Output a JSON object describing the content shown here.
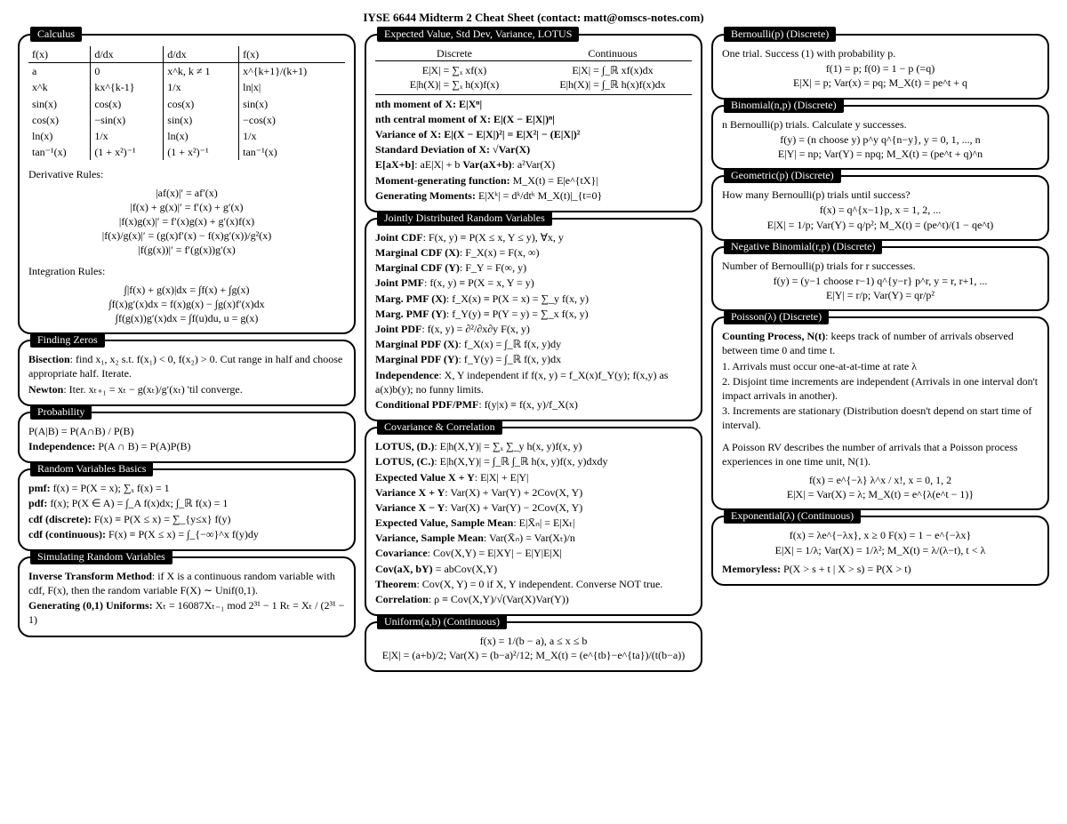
{
  "title": "IYSE 6644 Midterm 2 Cheat Sheet (contact: matt@omscs-notes.com)",
  "col1": {
    "calculus": {
      "title": "Calculus",
      "headers": [
        "f(x)",
        "d/dx",
        "d/dx",
        "f(x)"
      ],
      "rows": [
        [
          "a",
          "0",
          "x^k, k ≠ 1",
          "x^{k+1}/(k+1)"
        ],
        [
          "x^k",
          "kx^{k-1}",
          "1/x",
          "ln|x|"
        ],
        [
          "sin(x)",
          "cos(x)",
          "cos(x)",
          "sin(x)"
        ],
        [
          "cos(x)",
          "−sin(x)",
          "sin(x)",
          "−cos(x)"
        ],
        [
          "ln(x)",
          "1/x",
          "ln(x)",
          "1/x"
        ],
        [
          "tan⁻¹(x)",
          "(1 + x²)⁻¹",
          "(1 + x²)⁻¹",
          "tan⁻¹(x)"
        ]
      ],
      "deriv_label": "Derivative Rules:",
      "deriv": [
        "|af(x)|′ = af′(x)",
        "|f(x) + g(x)|′ = f′(x) + g′(x)",
        "|f(x)g(x)|′ = f′(x)g(x) + g′(x)f(x)",
        "|f(x)/g(x)|′ = (g(x)f′(x) − f(x)g′(x))/g²(x)",
        "|f(g(x))|′ = f′(g(x))g′(x)"
      ],
      "integ_label": "Integration Rules:",
      "integ": [
        "∫|f(x) + g(x)|dx = ∫f(x) + ∫g(x)",
        "∫f(x)g′(x)dx = f(x)g(x) − ∫g(x)f′(x)dx",
        "∫f(g(x))g′(x)dx = ∫f(u)du, u = g(x)"
      ]
    },
    "zeros": {
      "title": "Finding Zeros",
      "l1a": "Bisection",
      "l1b": ": find x₁, x₂ s.t. f(x₁) < 0, f(x₂) > 0. Cut range in half and choose appropriate half. Iterate.",
      "l2a": "Newton",
      "l2b": ": Iter. xₜ₊₁ = xₜ − g(xₜ)/g′(xₜ) 'til converge."
    },
    "prob": {
      "title": "Probability",
      "l1": "P(A|B) = P(A∩B) / P(B)",
      "l2a": "Independence:",
      "l2b": " P(A ∩ B) = P(A)P(B)"
    },
    "rvbasics": {
      "title": "Random Variables Basics",
      "l1a": "pmf:",
      "l1b": " f(x) = P(X = x);   ∑ₓ f(x) = 1",
      "l2a": "pdf:",
      "l2b": " f(x);   P(X ∈ A) = ∫_A f(x)dx;   ∫_ℝ f(x) = 1",
      "l3a": "cdf (discrete):",
      "l3b": " F(x) ≡ P(X ≤ x) = ∑_{y≤x} f(y)",
      "l4a": "cdf (continuous):",
      "l4b": " F(x) ≡ P(X ≤ x) = ∫_{−∞}^x f(y)dy"
    },
    "sim": {
      "title": "Simulating Random Variables",
      "l1a": "Inverse Transform Method",
      "l1b": ": if X is a continuous random variable with cdf, F(x), then the random variable F(X) ∼ Unif(0,1).",
      "l2a": "Generating (0,1) Uniforms:",
      "l2b": " Xₜ = 16087Xₜ₋₁ mod 2³¹ − 1   Rₜ = Xₜ / (2³¹ − 1)"
    }
  },
  "col2": {
    "ev": {
      "title": "Expected Value, Std Dev, Variance, LOTUS",
      "hd": "Discrete",
      "hc": "Continuous",
      "r1d": "E|X| = ∑ₓ xf(x)",
      "r1c": "E|X| = ∫_ℝ xf(x)dx",
      "r2d": "E|h(X)| = ∑ₓ h(x)f(x)",
      "r2c": "E|h(X)| = ∫_ℝ h(x)f(x)dx",
      "l3": "nth moment of X: E|Xⁿ|",
      "l4": "nth central moment of X: E|(X − E|X|)ⁿ|",
      "l5": "Variance of X: E|(X − E|X|)²| = E|X²| − (E|X|)²",
      "l6": "Standard Deviation of X: √Var(X)",
      "l7a": "E[aX+b]",
      "l7b": ": aE|X| + b   ",
      "l7c": "Var(aX+b)",
      "l7d": ": a²Var(X)",
      "l8a": "Moment-generating function:",
      "l8b": "  M_X(t) = E|e^{tX}|",
      "l9a": "Generating Moments:",
      "l9b": " E|Xᵏ| = dᵏ/dtᵏ M_X(t)|_{t=0}"
    },
    "joint": {
      "title": "Jointly Distributed Random Variables",
      "lines": [
        [
          "Joint CDF",
          ": F(x, y) ≡ P(X ≤ x, Y ≤ y), ∀x, y"
        ],
        [
          "Marginal CDF (X)",
          ": F_X(x) = F(x, ∞)"
        ],
        [
          "Marginal CDF (Y)",
          ": F_Y = F(∞, y)"
        ],
        [
          "Joint PMF",
          ": f(x, y) ≡ P(X = x, Y = y)"
        ],
        [
          "Marg. PMF (X)",
          ": f_X(x) ≡ P(X = x) = ∑_y f(x, y)"
        ],
        [
          "Marg. PMF (Y)",
          ": f_Y(y) ≡ P(Y = y) = ∑_x f(x, y)"
        ],
        [
          "Joint PDF",
          ": f(x, y) = ∂²/∂x∂y F(x, y)"
        ],
        [
          "Marginal PDF (X)",
          ": f_X(x) = ∫_ℝ f(x, y)dy"
        ],
        [
          "Marginal PDF (Y)",
          ": f_Y(y) = ∫_ℝ f(x, y)dx"
        ],
        [
          "Independence",
          ":  X, Y independent if f(x, y) = f_X(x)f_Y(y); f(x,y) as a(x)b(y); no funny limits."
        ],
        [
          "Conditional PDF/PMF",
          ": f(y|x) ≡ f(x, y)/f_X(x)"
        ]
      ]
    },
    "cov": {
      "title": "Covariance & Correlation",
      "l1a": "LOTUS, (D.)",
      "l1b": ": E|h(X,Y)| = ∑ₓ ∑_y h(x, y)f(x, y)",
      "l2a": "LOTUS, (C.)",
      "l2b": ": E|h(X,Y)| = ∫_ℝ ∫_ℝ h(x, y)f(x, y)dxdy",
      "l3a": "Expected Value X + Y",
      "l3b": ": E|X| + E|Y|",
      "l4a": "Variance X + Y",
      "l4b": ": Var(X) + Var(Y) + 2Cov(X, Y)",
      "l5a": "Variance X − Y",
      "l5b": ": Var(X) + Var(Y) − 2Cov(X, Y)",
      "l6a": "Expected Value, Sample Mean",
      "l6b": ": E|X̄ₙ| = E|Xₜ|",
      "l7a": "Variance, Sample Mean",
      "l7b": ": Var(X̄ₙ) = Var(Xₜ)/n",
      "l8a": "Covariance",
      "l8b": ": Cov(X,Y) = E|XY| − E|Y|E|X|",
      "l9a": "Cov(aX, bY)",
      "l9b": " = abCov(X,Y)",
      "l10a": "Theorem",
      "l10b": ": Cov(X, Y) = 0 if X, Y independent. Converse NOT true.",
      "l11a": "Correlation",
      "l11b": ": ρ ≡ Cov(X,Y)/√(Var(X)Var(Y))"
    },
    "unif": {
      "title": "Uniform(a,b) (Continuous)",
      "l1": "f(x) = 1/(b − a), a ≤ x ≤ b",
      "l2": "E|X| = (a+b)/2;   Var(X) = (b−a)²/12;  M_X(t) = (e^{tb}−e^{ta})/(t(b−a))"
    }
  },
  "col3": {
    "bern": {
      "title": "Bernoulli(p) (Discrete)",
      "l1": "One trial. Success (1) with probability p.",
      "l2": "f(1) = p; f(0) = 1 − p (=q)",
      "l3": "E|X| = p; Var(x) = pq; M_X(t) = pe^t + q"
    },
    "binom": {
      "title": "Binomial(n,p) (Discrete)",
      "l1": "n Bernoulli(p) trials. Calculate y successes.",
      "l2": "f(y) = (n choose y) p^y q^{n−y}, y = 0, 1, ..., n",
      "l3": "E|Y| = np; Var(Y) = npq; M_X(t) = (pe^t + q)^n"
    },
    "geom": {
      "title": "Geometric(p) (Discrete)",
      "l1": "How many Bernoulli(p) trials until success?",
      "l2": "f(x) = q^{x−1}p, x = 1, 2, ...",
      "l3": "E|X| = 1/p; Var(Y) = q/p²; M_X(t) = (pe^t)/(1 − qe^t)"
    },
    "negbin": {
      "title": "Negative Binomial(r,p) (Discrete)",
      "l1": "Number of Bernoulli(p) trials for r successes.",
      "l2": "f(y) = (y−1 choose r−1) q^{y−r} p^r, y = r, r+1, ...",
      "l3": "E|Y| = r/p; Var(Y) = qr/p²"
    },
    "pois": {
      "title": "Poisson(λ) (Discrete)",
      "l1a": "Counting Process, N(t)",
      "l1b": ": keeps track of number of arrivals observed between time 0 and time t.",
      "l2": "1. Arrivals must occur one-at-at-time at rate λ",
      "l3": "2. Disjoint time increments are independent (Arrivals in one interval don't impact arrivals in another).",
      "l4": "3. Increments are stationary (Distribution doesn't depend on start time of interval).",
      "l5": "A Poisson RV describes the number of arrivals that a Poisson process experiences in one time unit, N(1).",
      "l6": "f(x) = e^{−λ} λ^x / x!, x = 0, 1, 2",
      "l7": "E|X| = Var(X) = λ;    M_X(t) = e^{λ(e^t − 1)}"
    },
    "exp": {
      "title": "Exponential(λ) (Continuous)",
      "l1": "f(x) = λe^{−λx}, x ≥ 0   F(x) = 1 − e^{−λx}",
      "l2": "E|X| = 1/λ; Var(X) = 1/λ²; M_X(t) = λ/(λ−t), t < λ",
      "l3a": "Memoryless:",
      "l3b": " P(X > s + t | X > s) = P(X > t)"
    }
  }
}
